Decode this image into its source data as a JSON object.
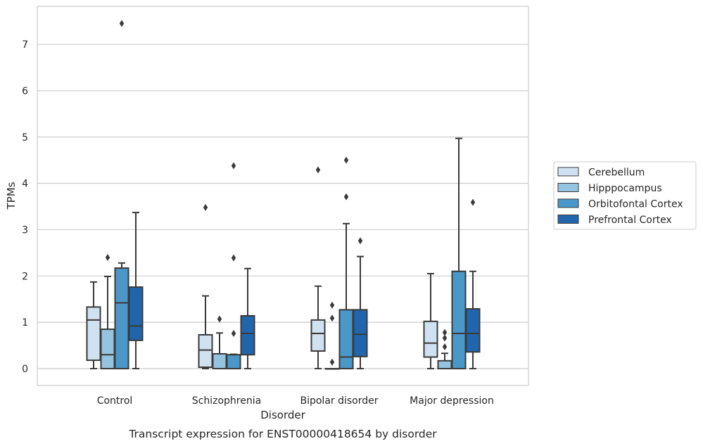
{
  "chart_data": {
    "type": "box",
    "caption": "Transcript expression for ENST00000418654 by disorder",
    "xlabel": "Disorder",
    "ylabel": "TPMs",
    "ylim": [
      -0.35,
      7.95
    ],
    "yticks": [
      0,
      1,
      2,
      3,
      4,
      5,
      6,
      7
    ],
    "grid": "horizontal",
    "legend_position": "right",
    "categories": [
      "Control",
      "Schizophrenia",
      "Bipolar disorder",
      "Major depression"
    ],
    "series": [
      {
        "name": "Cerebellum",
        "color": "#d0e1f2",
        "boxes": [
          {
            "whisker_low": 0.0,
            "q1": 0.18,
            "median": 1.05,
            "q3": 1.33,
            "whisker_high": 1.87,
            "outliers": []
          },
          {
            "whisker_low": 0.0,
            "q1": 0.03,
            "median": 0.4,
            "q3": 0.73,
            "whisker_high": 1.57,
            "outliers": [
              3.48
            ]
          },
          {
            "whisker_low": 0.0,
            "q1": 0.38,
            "median": 0.76,
            "q3": 1.05,
            "whisker_high": 1.78,
            "outliers": [
              4.29
            ]
          },
          {
            "whisker_low": 0.0,
            "q1": 0.25,
            "median": 0.55,
            "q3": 1.02,
            "whisker_high": 2.05,
            "outliers": []
          }
        ]
      },
      {
        "name": "Hipppocampus",
        "color": "#94c4df",
        "boxes": [
          {
            "whisker_low": 0.0,
            "q1": 0.0,
            "median": 0.3,
            "q3": 0.85,
            "whisker_high": 1.99,
            "outliers": [
              2.4
            ]
          },
          {
            "whisker_low": 0.0,
            "q1": 0.0,
            "median": 0.0,
            "q3": 0.32,
            "whisker_high": 0.77,
            "outliers": [
              1.07
            ]
          },
          {
            "whisker_low": 0.0,
            "q1": 0.0,
            "median": 0.0,
            "q3": 0.0,
            "whisker_high": 0.0,
            "outliers": [
              0.14,
              1.09,
              1.37
            ]
          },
          {
            "whisker_low": 0.0,
            "q1": 0.0,
            "median": 0.0,
            "q3": 0.17,
            "whisker_high": 0.33,
            "outliers": [
              0.47,
              0.66,
              0.78
            ]
          }
        ]
      },
      {
        "name": "Orbitofontal Cortex",
        "color": "#4a98c9",
        "boxes": [
          {
            "whisker_low": 0.0,
            "q1": 0.0,
            "median": 1.42,
            "q3": 2.17,
            "whisker_high": 2.28,
            "outliers": [
              7.45
            ]
          },
          {
            "whisker_low": 0.0,
            "q1": 0.0,
            "median": 0.0,
            "q3": 0.3,
            "whisker_high": 0.31,
            "outliers": [
              0.76,
              2.39,
              4.38
            ]
          },
          {
            "whisker_low": 0.0,
            "q1": 0.0,
            "median": 0.25,
            "q3": 1.27,
            "whisker_high": 3.13,
            "outliers": [
              3.71,
              4.5
            ]
          },
          {
            "whisker_low": 0.0,
            "q1": 0.0,
            "median": 0.76,
            "q3": 2.1,
            "whisker_high": 4.97,
            "outliers": []
          }
        ]
      },
      {
        "name": "Prefrontal Cortex",
        "color": "#2166ac",
        "boxes": [
          {
            "whisker_low": 0.0,
            "q1": 0.61,
            "median": 0.92,
            "q3": 1.76,
            "whisker_high": 3.37,
            "outliers": []
          },
          {
            "whisker_low": 0.0,
            "q1": 0.3,
            "median": 0.76,
            "q3": 1.14,
            "whisker_high": 2.16,
            "outliers": []
          },
          {
            "whisker_low": 0.0,
            "q1": 0.26,
            "median": 0.74,
            "q3": 1.27,
            "whisker_high": 2.42,
            "outliers": [
              2.76
            ]
          },
          {
            "whisker_low": 0.0,
            "q1": 0.36,
            "median": 0.76,
            "q3": 1.29,
            "whisker_high": 2.1,
            "outliers": [
              3.59
            ]
          }
        ]
      }
    ]
  }
}
